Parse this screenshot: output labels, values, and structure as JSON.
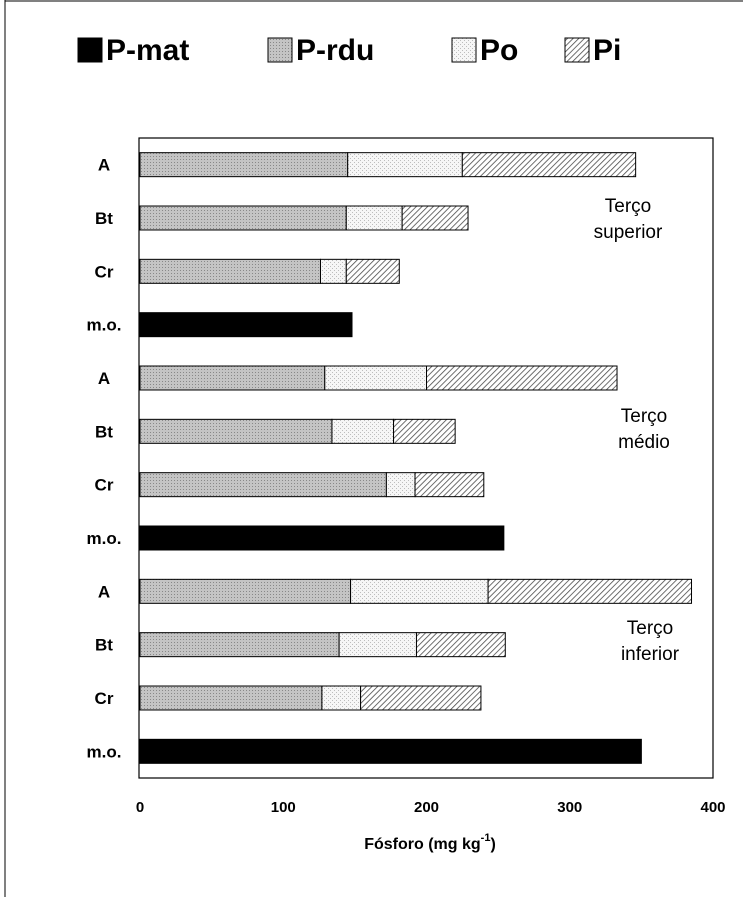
{
  "chart_data": {
    "type": "bar",
    "orientation": "horizontal",
    "stacked": true,
    "categories": [
      "A",
      "Bt",
      "Cr",
      "m.o.",
      "A",
      "Bt",
      "Cr",
      "m.o.",
      "A",
      "Bt",
      "Cr",
      "m.o."
    ],
    "series": [
      {
        "name": "P-mat",
        "pattern": "solid-black",
        "values": [
          0,
          0,
          0,
          148,
          0,
          0,
          0,
          254,
          0,
          0,
          0,
          350
        ]
      },
      {
        "name": "P-rdu",
        "pattern": "fine-dots",
        "values": [
          145,
          144,
          126,
          0,
          129,
          134,
          172,
          0,
          147,
          139,
          127,
          0
        ]
      },
      {
        "name": "Po",
        "pattern": "light-dots",
        "values": [
          80,
          39,
          18,
          0,
          71,
          43,
          20,
          0,
          96,
          54,
          27,
          0
        ]
      },
      {
        "name": "Pi",
        "pattern": "diagonal-hatch",
        "values": [
          121,
          46,
          37,
          0,
          133,
          43,
          48,
          0,
          142,
          62,
          84,
          0
        ]
      }
    ],
    "section_labels": [
      {
        "lines": [
          "Terço",
          "superior"
        ]
      },
      {
        "lines": [
          "Terço",
          "médio"
        ]
      },
      {
        "lines": [
          "Terço",
          "inferior"
        ]
      }
    ],
    "xlabel": "Fósforo (mg kg",
    "xlabel_superscript": "-1",
    "xlabel_suffix": ")",
    "xlim": [
      0,
      400
    ],
    "xticks": [
      0,
      100,
      200,
      300,
      400
    ],
    "grid": false,
    "legend_position": "top"
  }
}
